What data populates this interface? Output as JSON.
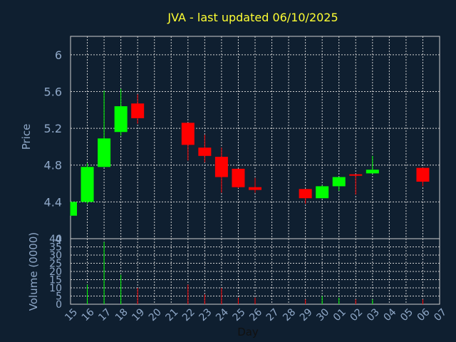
{
  "title": "JVA - last updated 06/10/2025",
  "colors": {
    "background": "#0f1f30",
    "up": "#00ff00",
    "down": "#ff0000",
    "text": "#8fa8c8",
    "title": "#ffff33",
    "grid": "#cfcfcf"
  },
  "chart_data": {
    "type": "candlestick",
    "title": "JVA - last updated 06/10/2025",
    "xlabel": "Day",
    "ylabel": "Price",
    "volume_label": "Volume (0000)",
    "ylim": [
      4.0,
      6.2
    ],
    "yticks": [
      "4",
      "4.4",
      "4.8",
      "5.2",
      "5.6",
      "6"
    ],
    "volume_ylim": [
      0,
      40
    ],
    "volume_ticks": [
      "0",
      "5",
      "10",
      "15",
      "20",
      "25",
      "30",
      "35",
      "40"
    ],
    "grid": true,
    "x_labels": [
      "15",
      "16",
      "17",
      "18",
      "19",
      "20",
      "21",
      "22",
      "23",
      "24",
      "25",
      "26",
      "27",
      "28",
      "29",
      "30",
      "01",
      "02",
      "03",
      "04",
      "05",
      "06",
      "07"
    ],
    "candles": [
      {
        "day": "15",
        "open": 4.25,
        "high": 4.4,
        "low": 4.25,
        "close": 4.4,
        "volume": 0
      },
      {
        "day": "16",
        "open": 4.4,
        "high": 4.82,
        "low": 4.38,
        "close": 4.78,
        "volume": 12
      },
      {
        "day": "17",
        "open": 4.78,
        "high": 5.61,
        "low": 4.78,
        "close": 5.09,
        "volume": 38
      },
      {
        "day": "18",
        "open": 5.16,
        "high": 5.63,
        "low": 5.12,
        "close": 5.44,
        "volume": 18
      },
      {
        "day": "19",
        "open": 5.47,
        "high": 5.57,
        "low": 5.25,
        "close": 5.31,
        "volume": 10
      },
      {
        "day": "22",
        "open": 5.26,
        "high": 5.26,
        "low": 4.85,
        "close": 5.02,
        "volume": 12
      },
      {
        "day": "23",
        "open": 4.99,
        "high": 5.13,
        "low": 4.83,
        "close": 4.9,
        "volume": 6
      },
      {
        "day": "24",
        "open": 4.89,
        "high": 4.99,
        "low": 4.5,
        "close": 4.67,
        "volume": 10
      },
      {
        "day": "25",
        "open": 4.76,
        "high": 4.76,
        "low": 4.55,
        "close": 4.56,
        "volume": 4
      },
      {
        "day": "26",
        "open": 4.56,
        "high": 4.66,
        "low": 4.5,
        "close": 4.53,
        "volume": 4
      },
      {
        "day": "29",
        "open": 4.54,
        "high": 4.54,
        "low": 4.38,
        "close": 4.44,
        "volume": 3
      },
      {
        "day": "30",
        "open": 4.44,
        "high": 4.58,
        "low": 4.44,
        "close": 4.57,
        "volume": 5
      },
      {
        "day": "01",
        "open": 4.57,
        "high": 4.67,
        "low": 4.52,
        "close": 4.67,
        "volume": 4
      },
      {
        "day": "02",
        "open": 4.7,
        "high": 4.7,
        "low": 4.48,
        "close": 4.69,
        "volume": 3
      },
      {
        "day": "03",
        "open": 4.71,
        "high": 4.9,
        "low": 4.71,
        "close": 4.75,
        "volume": 3
      },
      {
        "day": "06",
        "open": 4.77,
        "high": 4.77,
        "low": 4.57,
        "close": 4.62,
        "volume": 3
      }
    ]
  }
}
